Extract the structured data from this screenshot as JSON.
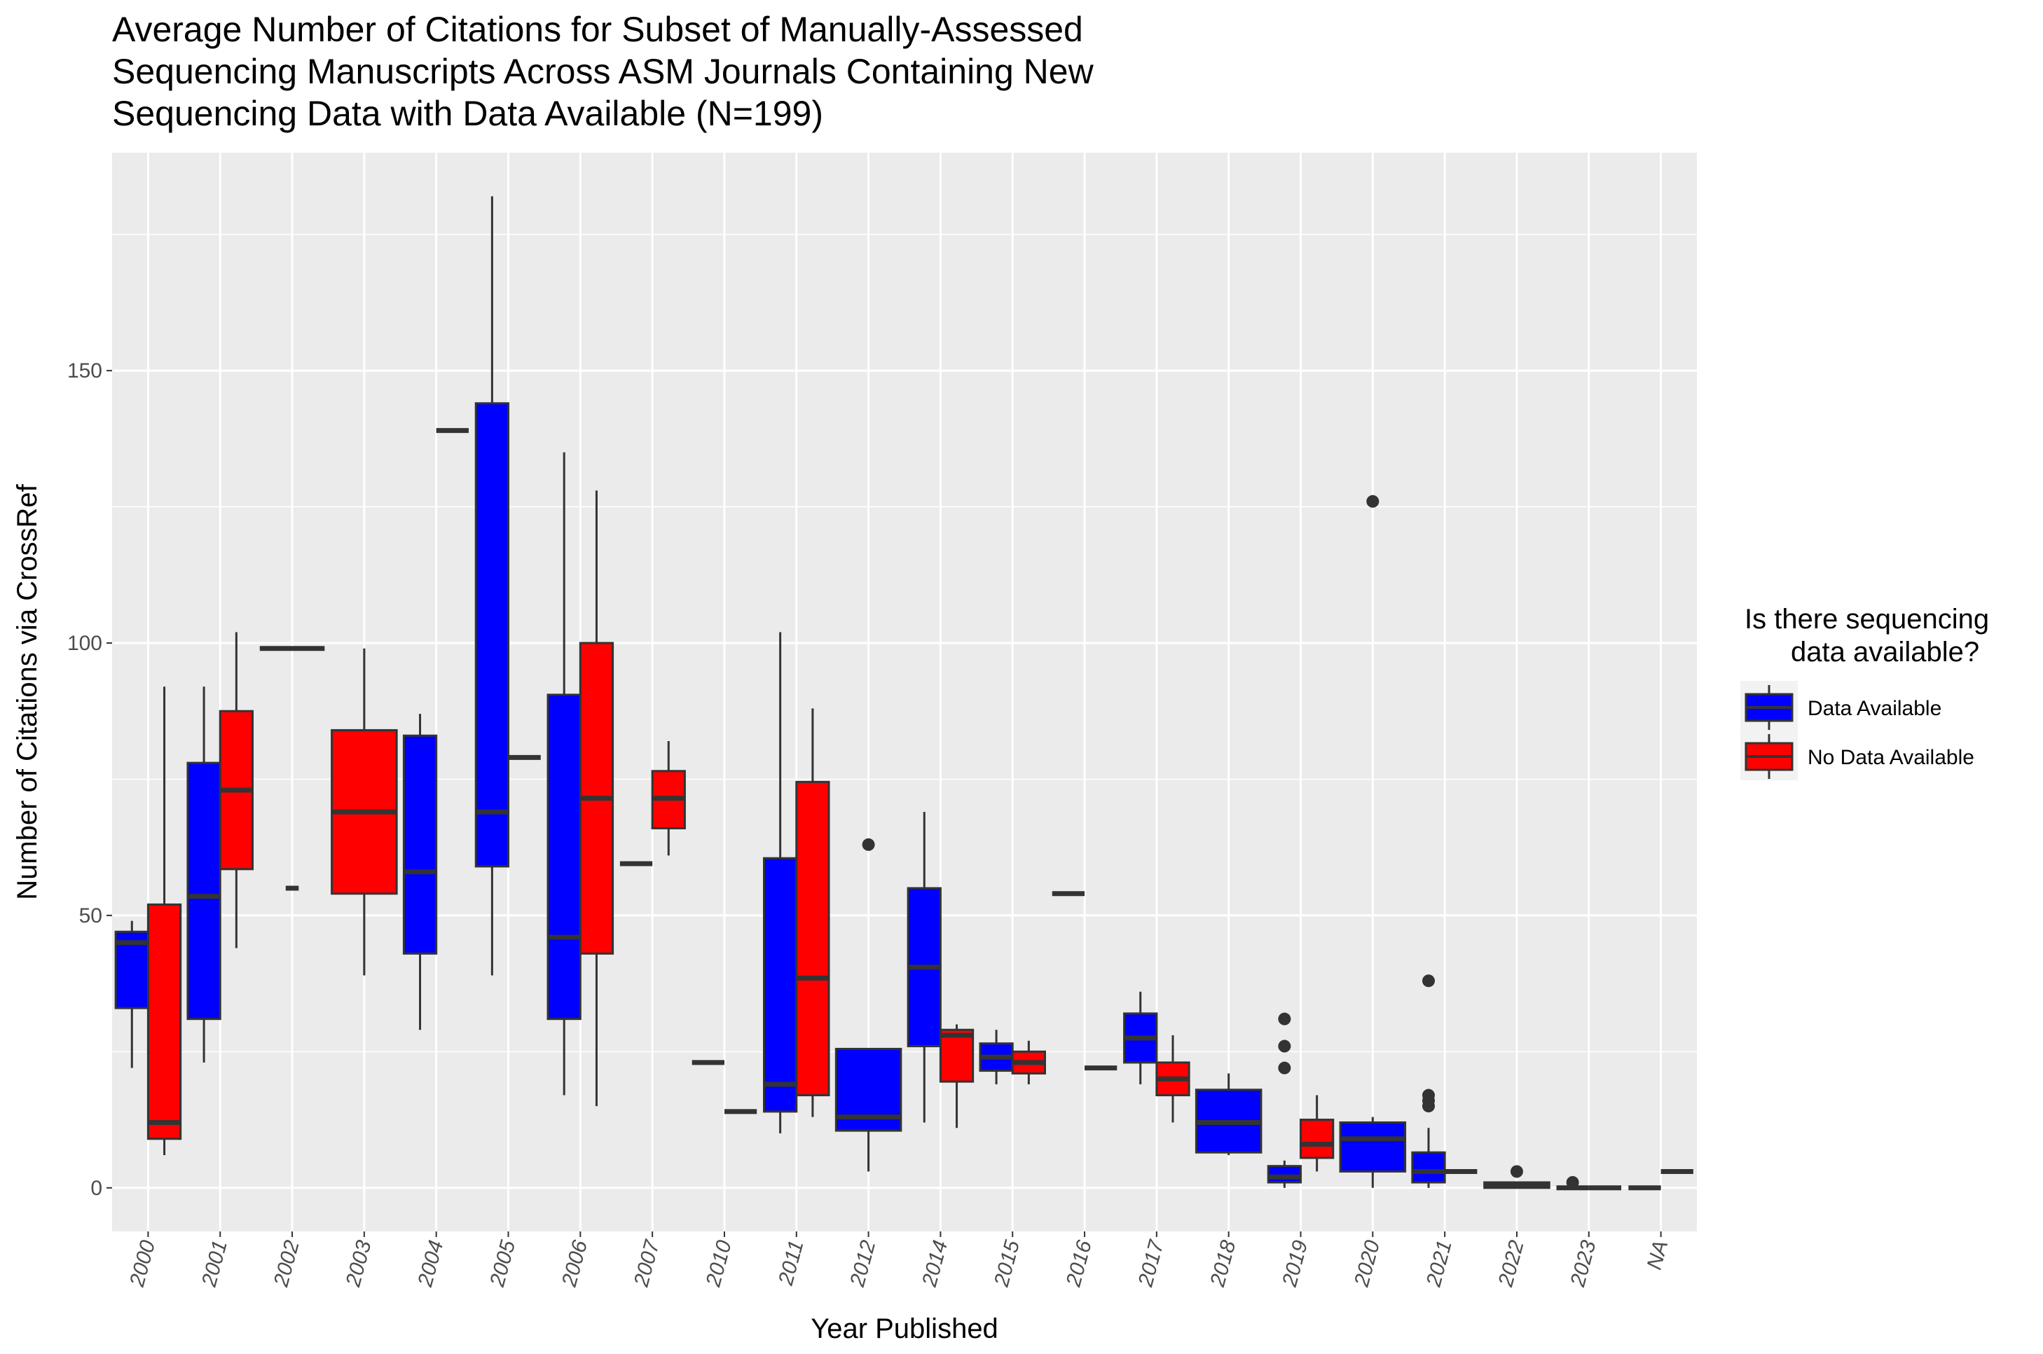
{
  "chart_data": {
    "type": "box",
    "title": "Average Number of Citations for Subset of Manually-Assessed Sequencing Manuscripts Across ASM Journals Containing New Sequencing Data with Data Available (N=199)",
    "title_lines": [
      "Average Number of Citations for Subset of Manually-Assessed",
      "Sequencing Manuscripts Across ASM Journals Containing New",
      "Sequencing Data with Data Available (N=199)"
    ],
    "xlabel": "Year Published",
    "ylabel": "Number of Citations via CrossRef",
    "ylim": [
      -8,
      190
    ],
    "yticks": [
      0,
      50,
      100,
      150
    ],
    "grid": true,
    "categories": [
      "2000",
      "2001",
      "2002",
      "2003",
      "2004",
      "2005",
      "2006",
      "2007",
      "2010",
      "2011",
      "2012",
      "2014",
      "2015",
      "2016",
      "2017",
      "2018",
      "2019",
      "2020",
      "2021",
      "2022",
      "2023",
      "NA"
    ],
    "legend": {
      "title_lines": [
        "Is there sequencing",
        "data available?"
      ],
      "position": "right",
      "entries": [
        {
          "name": "Data Available",
          "color": "#0000ff"
        },
        {
          "name": "No Data Available",
          "color": "#ff0000"
        }
      ]
    },
    "series": [
      {
        "name": "Data Available",
        "color": "#0000ff",
        "boxes": [
          {
            "x": "2000",
            "pos": "left",
            "min": 22,
            "q1": 33,
            "median": 45,
            "q3": 47,
            "max": 49,
            "outliers": []
          },
          {
            "x": "2001",
            "pos": "left",
            "min": 23,
            "q1": 31,
            "median": 53.5,
            "q3": 78,
            "max": 92,
            "outliers": []
          },
          {
            "x": "2002",
            "pos": "single",
            "min": 99,
            "q1": 99,
            "median": 99,
            "q3": 99,
            "max": 99,
            "outliers": []
          },
          {
            "x": "2004",
            "pos": "left",
            "min": 29,
            "q1": 43,
            "median": 58,
            "q3": 83,
            "max": 87,
            "outliers": []
          },
          {
            "x": "2005",
            "pos": "left",
            "min": 39,
            "q1": 59,
            "median": 69,
            "q3": 144,
            "max": 182,
            "outliers": []
          },
          {
            "x": "2006",
            "pos": "left",
            "min": 17,
            "q1": 31,
            "median": 46,
            "q3": 90.5,
            "max": 135,
            "outliers": []
          },
          {
            "x": "2007",
            "pos": "left",
            "min": 59.5,
            "q1": 59.5,
            "median": 59.5,
            "q3": 59.5,
            "max": 59.5,
            "outliers": []
          },
          {
            "x": "2010",
            "pos": "left",
            "min": 23,
            "q1": 23,
            "median": 23,
            "q3": 23,
            "max": 23,
            "outliers": []
          },
          {
            "x": "2011",
            "pos": "left",
            "min": 10,
            "q1": 14,
            "median": 19,
            "q3": 60.5,
            "max": 102,
            "outliers": []
          },
          {
            "x": "2012",
            "pos": "single",
            "min": 3,
            "q1": 10.5,
            "median": 13,
            "q3": 25.5,
            "max": 25.5,
            "outliers": [
              63
            ]
          },
          {
            "x": "2014",
            "pos": "left",
            "min": 12,
            "q1": 26,
            "median": 40.5,
            "q3": 55,
            "max": 69,
            "outliers": []
          },
          {
            "x": "2015",
            "pos": "left",
            "min": 19,
            "q1": 21.5,
            "median": 24,
            "q3": 26.5,
            "max": 29,
            "outliers": []
          },
          {
            "x": "2016",
            "pos": "left",
            "min": 54,
            "q1": 54,
            "median": 54,
            "q3": 54,
            "max": 54,
            "outliers": []
          },
          {
            "x": "2017",
            "pos": "left",
            "min": 19,
            "q1": 23,
            "median": 27.5,
            "q3": 32,
            "max": 36,
            "outliers": []
          },
          {
            "x": "2018",
            "pos": "single",
            "min": 6,
            "q1": 6.5,
            "median": 12,
            "q3": 18,
            "max": 21,
            "outliers": []
          },
          {
            "x": "2019",
            "pos": "left",
            "min": 0,
            "q1": 1,
            "median": 2,
            "q3": 4,
            "max": 5,
            "outliers": [
              22,
              26,
              31
            ]
          },
          {
            "x": "2020",
            "pos": "single",
            "min": 0,
            "q1": 3,
            "median": 9,
            "q3": 12,
            "max": 13,
            "outliers": [
              126
            ]
          },
          {
            "x": "2021",
            "pos": "left",
            "min": 0,
            "q1": 1,
            "median": 3,
            "q3": 6.5,
            "max": 11,
            "outliers": [
              15,
              16,
              17,
              38
            ]
          },
          {
            "x": "2022",
            "pos": "single",
            "min": 0,
            "q1": 0,
            "median": 0.5,
            "q3": 1,
            "max": 1,
            "outliers": [
              3
            ]
          },
          {
            "x": "2023",
            "pos": "left",
            "min": 0,
            "q1": 0,
            "median": 0,
            "q3": 0,
            "max": 0,
            "outliers": [
              1
            ]
          },
          {
            "x": "NA",
            "pos": "left",
            "min": 0,
            "q1": 0,
            "median": 0,
            "q3": 0,
            "max": 0,
            "outliers": []
          }
        ]
      },
      {
        "name": "No Data Available",
        "color": "#ff0000",
        "boxes": [
          {
            "x": "2000",
            "pos": "right",
            "min": 6,
            "q1": 9,
            "median": 12,
            "q3": 52,
            "max": 92,
            "outliers": []
          },
          {
            "x": "2001",
            "pos": "right",
            "min": 44,
            "q1": 58.5,
            "median": 73,
            "q3": 87.5,
            "max": 102,
            "outliers": []
          },
          {
            "x": "2002",
            "pos": "single-faint",
            "min": 55,
            "q1": 55,
            "median": 55,
            "q3": 55,
            "max": 55,
            "outliers": []
          },
          {
            "x": "2003",
            "pos": "single",
            "min": 39,
            "q1": 54,
            "median": 69,
            "q3": 84,
            "max": 99,
            "outliers": []
          },
          {
            "x": "2004",
            "pos": "right",
            "min": 139,
            "q1": 139,
            "median": 139,
            "q3": 139,
            "max": 139,
            "outliers": []
          },
          {
            "x": "2005",
            "pos": "right",
            "min": 79,
            "q1": 79,
            "median": 79,
            "q3": 79,
            "max": 79,
            "outliers": []
          },
          {
            "x": "2006",
            "pos": "right",
            "min": 15,
            "q1": 43,
            "median": 71.5,
            "q3": 100,
            "max": 128,
            "outliers": []
          },
          {
            "x": "2007",
            "pos": "right",
            "min": 61,
            "q1": 66,
            "median": 71.5,
            "q3": 76.5,
            "max": 82,
            "outliers": []
          },
          {
            "x": "2010",
            "pos": "right",
            "min": 14,
            "q1": 14,
            "median": 14,
            "q3": 14,
            "max": 14,
            "outliers": []
          },
          {
            "x": "2011",
            "pos": "right",
            "min": 13,
            "q1": 17,
            "median": 38.5,
            "q3": 74.5,
            "max": 88,
            "outliers": []
          },
          {
            "x": "2014",
            "pos": "right",
            "min": 11,
            "q1": 19.5,
            "median": 28,
            "q3": 29,
            "max": 30,
            "outliers": []
          },
          {
            "x": "2015",
            "pos": "right",
            "min": 19,
            "q1": 21,
            "median": 23,
            "q3": 25,
            "max": 27,
            "outliers": []
          },
          {
            "x": "2016",
            "pos": "right",
            "min": 22,
            "q1": 22,
            "median": 22,
            "q3": 22,
            "max": 22,
            "outliers": []
          },
          {
            "x": "2017",
            "pos": "right",
            "min": 12,
            "q1": 17,
            "median": 20,
            "q3": 23,
            "max": 28,
            "outliers": []
          },
          {
            "x": "2019",
            "pos": "right",
            "min": 3,
            "q1": 5.5,
            "median": 8,
            "q3": 12.5,
            "max": 17,
            "outliers": []
          },
          {
            "x": "2021",
            "pos": "right",
            "min": 3,
            "q1": 3,
            "median": 3,
            "q3": 3,
            "max": 3,
            "outliers": []
          },
          {
            "x": "2023",
            "pos": "right",
            "min": 0,
            "q1": 0,
            "median": 0,
            "q3": 0,
            "max": 0,
            "outliers": []
          },
          {
            "x": "NA",
            "pos": "right",
            "min": 3,
            "q1": 3,
            "median": 3,
            "q3": 3,
            "max": 3,
            "outliers": []
          }
        ]
      }
    ]
  }
}
